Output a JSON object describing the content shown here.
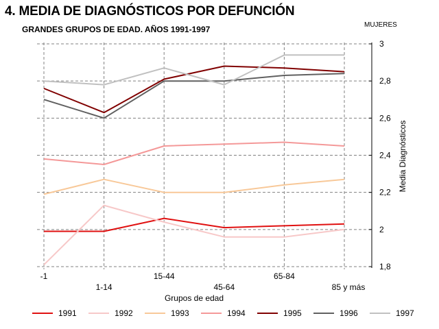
{
  "header": {
    "title": "4. MEDIA DE DIAGNÓSTICOS POR DEFUNCIÓN",
    "subtitle": "GRANDES  GRUPOS DE EDAD. AÑOS 1991-1997",
    "corner_label": "MUJERES"
  },
  "chart_data": {
    "type": "line",
    "title": "4. MEDIA DE DIAGNÓSTICOS POR DEFUNCIÓN",
    "subtitle": "GRANDES  GRUPOS DE EDAD. AÑOS 1991-1997",
    "xlabel": "Grupos de edad",
    "ylabel": "Media Diagnósticos",
    "categories": [
      "-1",
      "1-14",
      "15-44",
      "45-64",
      "65-84",
      "85 y más"
    ],
    "ylim": [
      1.8,
      3.0
    ],
    "yticks": [
      "1,8",
      "2",
      "2,2",
      "2,4",
      "2,6",
      "2,8",
      "3"
    ],
    "ytick_values": [
      1.8,
      2.0,
      2.2,
      2.4,
      2.6,
      2.8,
      3.0
    ],
    "y_axis_position": "right",
    "grid": true,
    "legend_position": "bottom",
    "series": [
      {
        "name": "1991",
        "color": "#e01010",
        "values": [
          1.99,
          1.99,
          2.06,
          2.01,
          2.02,
          2.03
        ]
      },
      {
        "name": "1992",
        "color": "#f7c8c8",
        "values": [
          1.81,
          2.13,
          2.04,
          1.96,
          1.96,
          2.0
        ]
      },
      {
        "name": "1993",
        "color": "#f8c898",
        "values": [
          2.19,
          2.27,
          2.2,
          2.2,
          2.24,
          2.27
        ]
      },
      {
        "name": "1994",
        "color": "#f49898",
        "values": [
          2.38,
          2.35,
          2.45,
          2.46,
          2.47,
          2.45
        ]
      },
      {
        "name": "1995",
        "color": "#800000",
        "values": [
          2.76,
          2.63,
          2.81,
          2.88,
          2.87,
          2.85
        ]
      },
      {
        "name": "1996",
        "color": "#606060",
        "values": [
          2.7,
          2.6,
          2.8,
          2.8,
          2.83,
          2.84
        ]
      },
      {
        "name": "1997",
        "color": "#c0c0c0",
        "values": [
          2.8,
          2.78,
          2.87,
          2.78,
          2.94,
          2.94
        ]
      }
    ]
  }
}
